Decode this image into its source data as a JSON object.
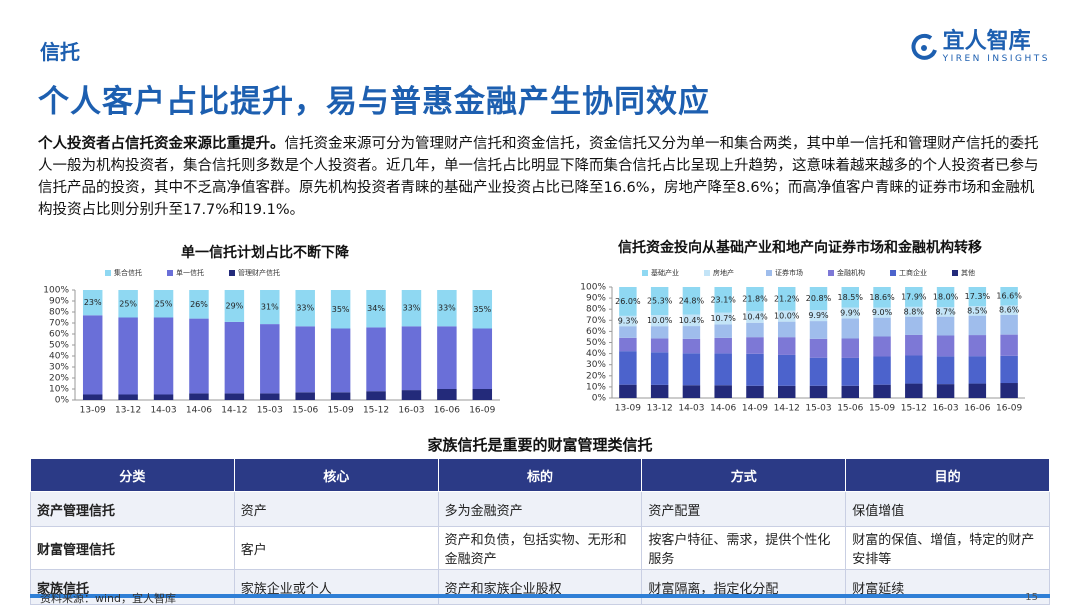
{
  "header": {
    "section": "信托",
    "title": "个人客户占比提升，易与普惠金融产生协同效应",
    "logo": "宜人智库",
    "logo_sub": "YIREN INSIGHTS"
  },
  "paragraph": {
    "lead": "个人投资者占信托资金来源比重提升。",
    "text": "信托资金来源可分为管理财产信托和资金信托，资金信托又分为单一和集合两类，其中单一信托和管理财产信托的委托人一般为机构投资者，集合信托则多数是个人投资者。近几年，单一信托占比明显下降而集合信托占比呈现上升趋势，这意味着越来越多的个人投资者已参与信托产品的投资，其中不乏高净值客群。原先机构投资者青睐的基础产业投资占比已降至16.6%，房地产降至8.6%；而高净值客户青睐的证券市场和金融机构投资占比则分别升至17.7%和19.1%。"
  },
  "chart_data": [
    {
      "type": "stacked_bar",
      "title": "单一信托计划占比不断下降",
      "categories": [
        "13-09",
        "13-12",
        "14-03",
        "14-06",
        "14-12",
        "15-03",
        "15-06",
        "15-09",
        "15-12",
        "16-03",
        "16-06",
        "16-09"
      ],
      "series": [
        {
          "name": "集合信托",
          "color": "#8fd8f2",
          "values": [
            23,
            25,
            25,
            26,
            29,
            31,
            33,
            35,
            34,
            33,
            33,
            35
          ],
          "value_labels": [
            "23%",
            "25%",
            "25%",
            "26%",
            "29%",
            "31%",
            "33%",
            "35%",
            "34%",
            "33%",
            "33%",
            "35%"
          ]
        },
        {
          "name": "单一信托",
          "color": "#6a6fd8",
          "values": [
            72,
            70,
            70,
            68,
            65,
            63,
            60,
            58,
            58,
            58,
            57,
            55
          ]
        },
        {
          "name": "管理财产信托",
          "color": "#232a7a",
          "values": [
            5,
            5,
            5,
            6,
            6,
            6,
            7,
            7,
            8,
            9,
            10,
            10
          ]
        }
      ],
      "ylim": [
        0,
        100
      ],
      "yticks": [
        {
          "value": 0,
          "label": "0%"
        },
        {
          "value": 10,
          "label": "10%"
        },
        {
          "value": 20,
          "label": "20%"
        },
        {
          "value": 30,
          "label": "30%"
        },
        {
          "value": 40,
          "label": "40%"
        },
        {
          "value": 50,
          "label": "50%"
        },
        {
          "value": 60,
          "label": "60%"
        },
        {
          "value": 70,
          "label": "70%"
        },
        {
          "value": 80,
          "label": "80%"
        },
        {
          "value": 90,
          "label": "90%"
        },
        {
          "value": 100,
          "label": "100%"
        }
      ]
    },
    {
      "type": "stacked_bar",
      "title": "信托资金投向从基础产业和地产向证券市场和金融机构转移",
      "categories": [
        "13-09",
        "13-12",
        "14-03",
        "14-06",
        "14-09",
        "14-12",
        "15-03",
        "15-06",
        "15-09",
        "15-12",
        "16-03",
        "16-06",
        "16-09"
      ],
      "series": [
        {
          "name": "基础产业",
          "color": "#8fd8f2",
          "values": [
            26.0,
            25.3,
            24.8,
            23.1,
            21.8,
            21.2,
            20.8,
            18.5,
            18.6,
            17.9,
            18.0,
            17.3,
            16.6
          ],
          "value_labels": [
            "26.0%",
            "25.3%",
            "24.8%",
            "23.1%",
            "21.8%",
            "21.2%",
            "20.8%",
            "18.5%",
            "18.6%",
            "17.9%",
            "18.0%",
            "17.3%",
            "16.6%"
          ]
        },
        {
          "name": "房地产",
          "color": "#c3e4f7",
          "values": [
            9.3,
            10.0,
            10.4,
            10.7,
            10.4,
            10.0,
            9.9,
            9.9,
            9.0,
            8.8,
            8.7,
            8.5,
            8.6
          ],
          "value_labels": [
            "9.3%",
            "10.0%",
            "10.4%",
            "10.7%",
            "10.4%",
            "10.0%",
            "9.9%",
            "9.9%",
            "9.0%",
            "8.8%",
            "8.7%",
            "8.5%",
            "8.6%"
          ]
        },
        {
          "name": "证券市场",
          "color": "#9fbdec",
          "values": [
            10.5,
            11,
            11.5,
            12,
            13,
            14,
            16,
            18,
            17,
            16.5,
            17,
            17.5,
            17.7
          ]
        },
        {
          "name": "金融机构",
          "color": "#7d78d6",
          "values": [
            12,
            12.5,
            13,
            14,
            15,
            16,
            17,
            17.5,
            18,
            18.5,
            18.8,
            19,
            19.1
          ]
        },
        {
          "name": "工商企业",
          "color": "#4c63cc",
          "values": [
            30.2,
            29.4,
            28.8,
            28.7,
            28.8,
            27.8,
            25.3,
            25.1,
            25.4,
            25.3,
            25,
            24.7,
            24.5
          ]
        },
        {
          "name": "其他",
          "color": "#232a7a",
          "values": [
            12,
            11.8,
            11.5,
            11.5,
            11,
            11,
            11,
            11,
            12,
            13,
            12.5,
            13,
            13.5
          ]
        }
      ],
      "ylim": [
        0,
        100
      ],
      "yticks": [
        {
          "value": 0,
          "label": "0%"
        },
        {
          "value": 10,
          "label": "10%"
        },
        {
          "value": 20,
          "label": "20%"
        },
        {
          "value": 30,
          "label": "30%"
        },
        {
          "value": 40,
          "label": "40%"
        },
        {
          "value": 50,
          "label": "50%"
        },
        {
          "value": 60,
          "label": "60%"
        },
        {
          "value": 70,
          "label": "70%"
        },
        {
          "value": 80,
          "label": "80%"
        },
        {
          "value": 90,
          "label": "90%"
        },
        {
          "value": 100,
          "label": "100%"
        }
      ]
    }
  ],
  "table": {
    "title": "家族信托是重要的财富管理类信托",
    "header": [
      "分类",
      "核心",
      "标的",
      "方式",
      "目的"
    ],
    "rows": [
      [
        "资产管理信托",
        "资产",
        "多为金融资产",
        "资产配置",
        "保值增值"
      ],
      [
        "财富管理信托",
        "客户",
        "资产和负债，包括实物、无形和金融资产",
        "按客户特征、需求，提供个性化服务",
        "财富的保值、增值，特定的财产安排等"
      ],
      [
        "家族信托",
        "家族企业或个人",
        "资产和家族企业股权",
        "财富隔离，指定化分配",
        "财富延续"
      ]
    ]
  },
  "footer": {
    "source": "资料来源：wind，宜人智库",
    "page": "15"
  }
}
